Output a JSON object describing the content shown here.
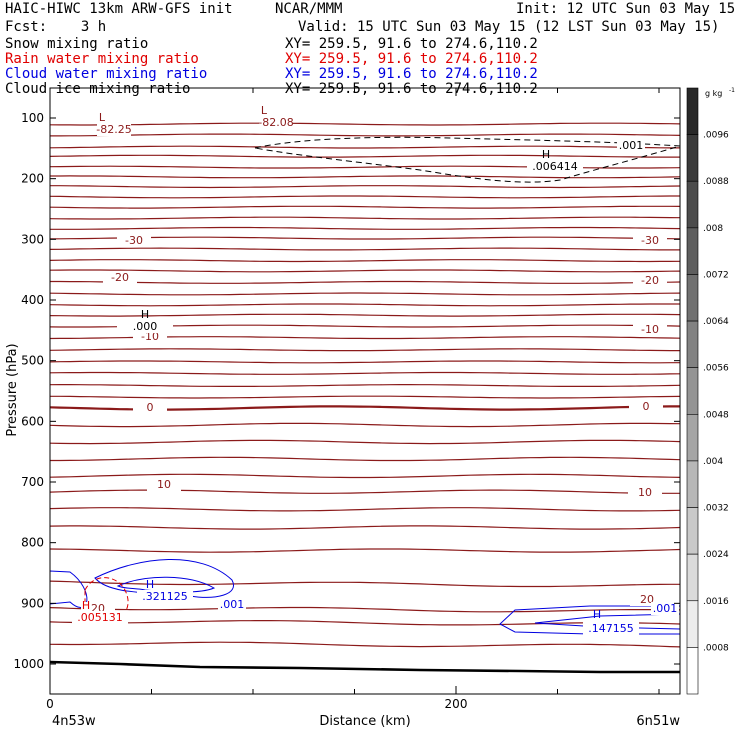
{
  "header": {
    "title": "HAIC-HIWC 13km ARW-GFS init",
    "center": "NCAR/MMM",
    "init": "Init: 12 UTC Sun 03 May 15",
    "fcst": "Fcst:    3 h",
    "valid": "Valid: 15 UTC Sun 03 May 15 (12 LST Sun 03 May 15)",
    "fields": [
      {
        "name": "Snow mixing ratio",
        "xy": "XY= 259.5, 91.6 to 274.6,110.2",
        "color": "#000000"
      },
      {
        "name": "Rain water mixing ratio",
        "xy": "XY= 259.5, 91.6 to 274.6,110.2",
        "color": "#e00000"
      },
      {
        "name": "Cloud water mixing ratio",
        "xy": "XY= 259.5, 91.6 to 274.6,110.2",
        "color": "#0000e0"
      },
      {
        "name": "Cloud ice mixing ratio",
        "xy": "XY= 259.5, 91.6 to 274.6,110.2",
        "color": "#000000"
      }
    ]
  },
  "chart_data": {
    "type": "contour",
    "xlabel": "Distance (km)",
    "ylabel": "Pressure (hPa)",
    "x_ticks": [
      {
        "v": 0,
        "label": "0"
      },
      {
        "v": 200,
        "label": "200"
      }
    ],
    "x_minor": [
      50,
      100,
      150,
      250,
      300
    ],
    "xlim": [
      0,
      310
    ],
    "y_ticks": [
      100,
      200,
      300,
      400,
      500,
      600,
      700,
      800,
      900,
      1000
    ],
    "ylim": [
      50,
      1050
    ],
    "endpoints": {
      "left": "4n53w",
      "right": "6n51w"
    },
    "colorbar": {
      "unit": "g kg",
      "unit_exp": "-1",
      "labels": [
        ".0096",
        ".0088",
        ".008",
        ".0072",
        ".0064",
        ".0056",
        ".0048",
        ".004",
        ".0032",
        ".0024",
        ".0016",
        ".0008"
      ]
    },
    "temperature_labels": [
      {
        "x": -0.1,
        "p": 127,
        "text": "-82.25",
        "kind": "low",
        "mark": "L"
      },
      {
        "x": 0.22,
        "p": 103,
        "text": "-82.08",
        "kind": "low",
        "mark": "L"
      },
      {
        "x": 0.15,
        "p": 345,
        "text": "-30"
      },
      {
        "x": 0.94,
        "p": 345,
        "text": "-30"
      },
      {
        "x": 0.12,
        "p": 397,
        "text": "-20"
      },
      {
        "x": 0.94,
        "p": 397,
        "text": "-20"
      },
      {
        "x": 0.18,
        "p": 456,
        "text": "-10"
      },
      {
        "x": 0.96,
        "p": 447,
        "text": "-10"
      },
      {
        "x": 0.9,
        "p": 0,
        "text": "0"
      },
      {
        "x": 0.19,
        "p": 578,
        "text": "0"
      },
      {
        "x": 0.16,
        "p": 680,
        "text": "10"
      },
      {
        "x": 0.94,
        "p": 692,
        "text": "10"
      },
      {
        "x": 0.08,
        "p": 910,
        "text": "20"
      },
      {
        "x": 0.95,
        "p": 875,
        "text": "20"
      }
    ],
    "max_labels": [
      {
        "text": "H",
        "sub": ".000",
        "color": "#000000"
      },
      {
        "text": "H",
        "sub": ".006414",
        "color": "#000000"
      },
      {
        "text": "H",
        "sub": ".321125",
        "color": "#0000e0"
      },
      {
        "text": "H",
        "sub": ".147155",
        "color": "#0000e0"
      },
      {
        "text": "H",
        "sub": ".005131",
        "color": "#e00000"
      }
    ],
    "contour_labels": [
      {
        "text": ".001",
        "color": "#000000"
      },
      {
        "text": ".001",
        "color": "#0000e0"
      },
      {
        "text": ".001",
        "color": "#0000e0"
      }
    ],
    "temperature_contours_p": [
      110,
      128,
      148,
      163,
      181,
      197,
      213,
      230,
      247,
      265,
      282,
      298,
      316,
      335,
      352,
      371,
      390,
      408,
      425,
      443,
      462,
      482,
      502,
      521,
      541,
      560,
      578,
      606,
      634,
      662,
      690,
      716,
      745,
      775,
      813,
      865,
      907,
      929,
      965
    ],
    "temperature_color": "#8b1a1a"
  }
}
